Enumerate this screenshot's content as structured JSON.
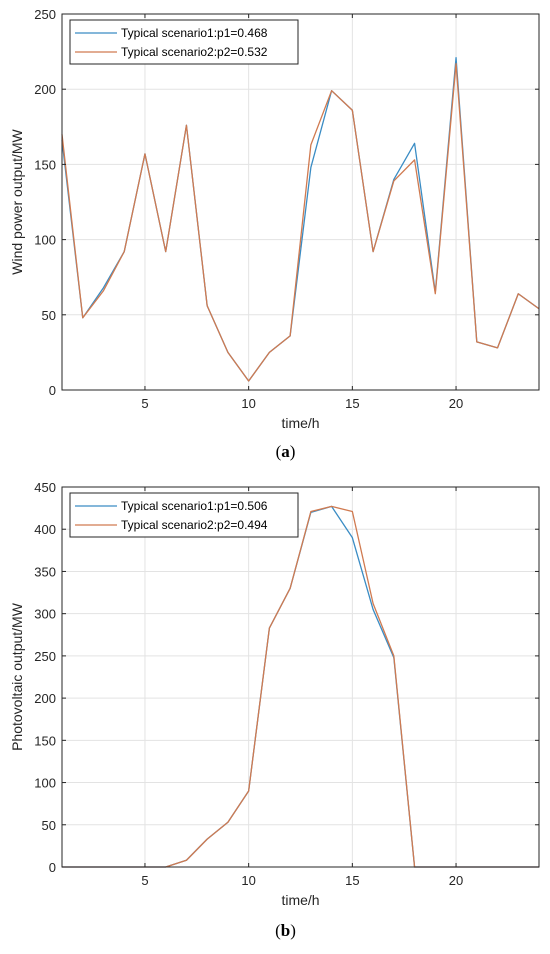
{
  "colors": {
    "series1": "#3a8cc4",
    "series2": "#d07a50",
    "axis": "#262626",
    "grid": "#e3e3e3"
  },
  "chart_data": [
    {
      "type": "line",
      "caption_open": "(",
      "caption_letter": "a",
      "caption_close": ")",
      "xlabel": "time/h",
      "ylabel": "Wind power output/MW",
      "xlim": [
        1,
        24
      ],
      "ylim": [
        0,
        250
      ],
      "xticks": [
        5,
        10,
        15,
        20
      ],
      "yticks": [
        0,
        50,
        100,
        150,
        200,
        250
      ],
      "grid": true,
      "legend": "top-left",
      "x": [
        1,
        2,
        3,
        4,
        5,
        6,
        7,
        8,
        9,
        10,
        11,
        12,
        13,
        14,
        15,
        16,
        17,
        18,
        19,
        20,
        21,
        22,
        23,
        24
      ],
      "series": [
        {
          "name": "Typical scenario1:p1=0.468",
          "values": [
            166,
            48,
            68,
            92,
            157,
            92,
            176,
            56,
            25,
            6,
            25,
            36,
            148,
            199,
            186,
            92,
            140,
            164,
            65,
            221,
            32,
            28,
            64,
            54
          ]
        },
        {
          "name": "Typical scenario2:p2=0.532",
          "values": [
            170,
            48,
            66,
            92,
            157,
            92,
            176,
            56,
            25,
            6,
            25,
            36,
            163,
            199,
            186,
            92,
            139,
            153,
            64,
            217,
            32,
            28,
            64,
            54
          ]
        }
      ]
    },
    {
      "type": "line",
      "caption_open": "(",
      "caption_letter": "b",
      "caption_close": ")",
      "xlabel": "time/h",
      "ylabel": "Photovoltaic output/MW",
      "xlim": [
        1,
        24
      ],
      "ylim": [
        0,
        450
      ],
      "xticks": [
        5,
        10,
        15,
        20
      ],
      "yticks": [
        0,
        50,
        100,
        150,
        200,
        250,
        300,
        350,
        400,
        450
      ],
      "grid": true,
      "legend": "top-left",
      "x": [
        1,
        2,
        3,
        4,
        5,
        6,
        7,
        8,
        9,
        10,
        11,
        12,
        13,
        14,
        15,
        16,
        17,
        18,
        19,
        20,
        21,
        22,
        23,
        24
      ],
      "series": [
        {
          "name": "Typical scenario1:p1=0.506",
          "values": [
            0,
            0,
            0,
            0,
            0,
            0,
            8,
            33,
            53,
            90,
            283,
            330,
            420,
            427,
            390,
            305,
            248,
            0,
            0,
            0,
            0,
            0,
            0,
            0
          ]
        },
        {
          "name": "Typical scenario2:p2=0.494",
          "values": [
            0,
            0,
            0,
            0,
            0,
            0,
            8,
            33,
            53,
            90,
            283,
            330,
            421,
            427,
            421,
            312,
            250,
            0,
            0,
            0,
            0,
            0,
            0,
            0
          ]
        }
      ]
    }
  ]
}
